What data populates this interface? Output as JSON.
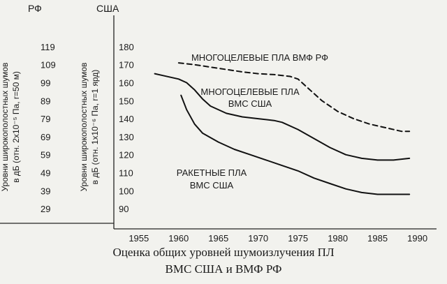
{
  "chart_data": {
    "type": "line",
    "header_left": "РФ",
    "header_right": "США",
    "ylabel_rf": [
      "Уровни широкополостных шумов",
      "в дБ (отн. 2x10⁻⁵ Па, r=50 м)"
    ],
    "ylabel_us": [
      "Уровни широкополостных шумов",
      "в дБ (отн. 1x10⁻⁶ Па, r=1 ярд)"
    ],
    "x_ticks": [
      1955,
      1960,
      1965,
      1970,
      1975,
      1980,
      1985,
      1990
    ],
    "xlim": [
      1953,
      1991
    ],
    "ylim": [
      85,
      185
    ],
    "y_ticks_us": [
      90,
      100,
      110,
      120,
      130,
      140,
      150,
      160,
      170,
      180
    ],
    "y_ticks_rf": [
      29,
      39,
      49,
      59,
      69,
      79,
      89,
      99,
      109,
      119
    ],
    "series": [
      {
        "name": "МНОГОЦЕЛЕВЫЕ ПЛА ВМФ РФ",
        "style": "dashed",
        "x": [
          1960,
          1962,
          1965,
          1968,
          1970,
          1972,
          1974,
          1975,
          1976,
          1977,
          1978,
          1979,
          1980,
          1982,
          1984,
          1986,
          1988,
          1989
        ],
        "y": [
          171,
          170,
          168,
          166,
          165,
          164.5,
          163.5,
          162,
          158,
          154,
          150,
          147,
          144,
          140,
          137,
          135,
          133,
          133
        ]
      },
      {
        "name": "МНОГОЦЕЛЕВЫЕ ПЛА ВМС США",
        "style": "solid",
        "x": [
          1957,
          1958,
          1960,
          1961,
          1962,
          1963,
          1964,
          1966,
          1968,
          1970,
          1972,
          1973,
          1975,
          1977,
          1979,
          1981,
          1983,
          1985,
          1987,
          1989
        ],
        "y": [
          165,
          164,
          162,
          160,
          156,
          151,
          147,
          143,
          141,
          140,
          139,
          138,
          134,
          129,
          124,
          120,
          118,
          117,
          117,
          118
        ]
      },
      {
        "name": "РАКЕТНЫЕ ПЛА ВМС США",
        "style": "solid",
        "x": [
          1960.3,
          1961,
          1962,
          1963,
          1965,
          1967,
          1969,
          1971,
          1973,
          1975,
          1977,
          1979,
          1981,
          1983,
          1985,
          1987,
          1989
        ],
        "y": [
          153,
          145,
          137,
          132,
          127,
          123,
          120,
          117,
          114,
          111,
          107,
          104,
          101,
          99,
          98,
          98,
          98
        ]
      }
    ],
    "annotations": [
      "МНОГОЦЕЛЕВЫЕ ПЛА ВМФ РФ",
      "МНОГОЦЕЛЕВЫЕ ПЛА",
      "ВМС США",
      "РАКЕТНЫЕ  ПЛА",
      "ВМС США"
    ]
  },
  "caption": [
    "Оценка общих уровней шумоизлучения ПЛ",
    "ВМС США и ВМФ РФ"
  ]
}
